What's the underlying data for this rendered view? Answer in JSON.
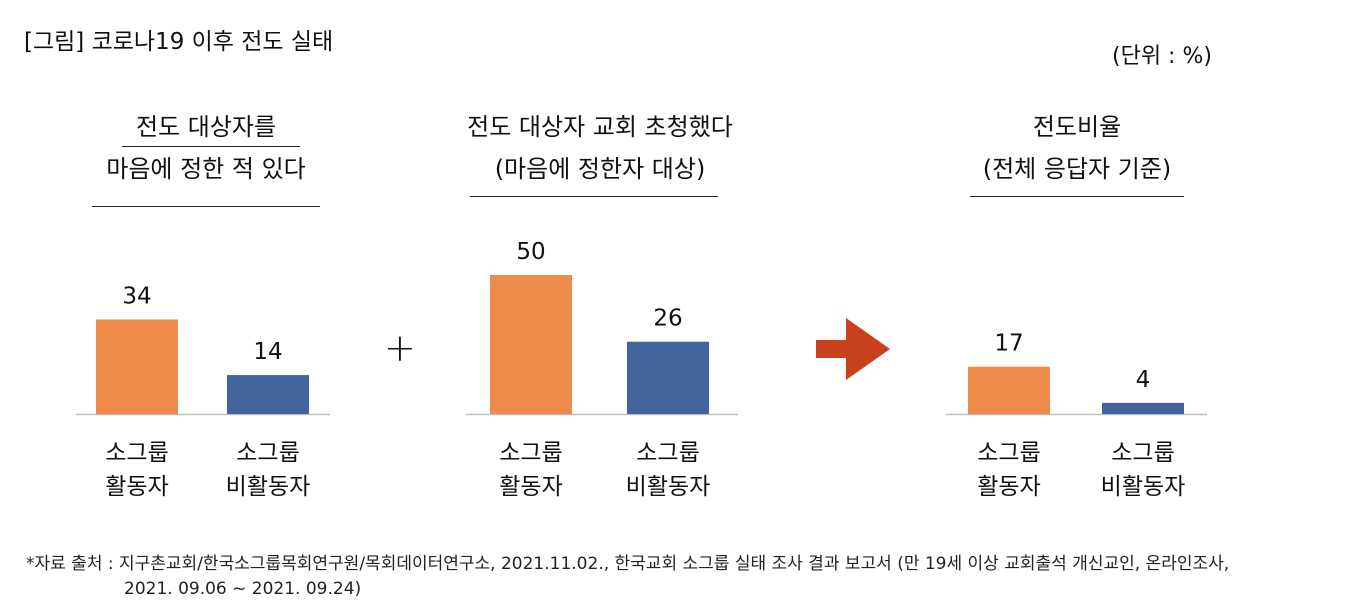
{
  "figure": {
    "title": "[그림] 코로나19 이후 전도 실태",
    "unit": "(단위 : %)"
  },
  "panels": [
    {
      "title_lines": [
        "전도 대상자를",
        "마음에 정한 적 있다"
      ]
    },
    {
      "title_lines": [
        "전도 대상자 교회 초청했다",
        "(마음에 정한자 대상)"
      ]
    },
    {
      "title_lines": [
        "전도비율",
        "(전체 응답자 기준)"
      ]
    }
  ],
  "operators": {
    "plus": "+",
    "arrow": "arrow-right-icon"
  },
  "colors": {
    "active": "#EE8A4A",
    "inactive": "#41649E",
    "arrow": "#C8421E",
    "axis": "#BFBFBF"
  },
  "chart_data": [
    {
      "type": "bar",
      "title": "전도 대상자를 마음에 정한 적 있다",
      "categories": [
        [
          "소그룹",
          "활동자"
        ],
        [
          "소그룹",
          "비활동자"
        ]
      ],
      "values": [
        34,
        14
      ],
      "ylim": [
        0,
        60
      ]
    },
    {
      "type": "bar",
      "title": "전도 대상자 교회 초청했다 (마음에 정한자 대상)",
      "categories": [
        [
          "소그룹",
          "활동자"
        ],
        [
          "소그룹",
          "비활동자"
        ]
      ],
      "values": [
        50,
        26
      ],
      "ylim": [
        0,
        60
      ]
    },
    {
      "type": "bar",
      "title": "전도비율 (전체 응답자 기준)",
      "categories": [
        [
          "소그룹",
          "활동자"
        ],
        [
          "소그룹",
          "비활동자"
        ]
      ],
      "values": [
        17,
        4
      ],
      "ylim": [
        0,
        60
      ]
    }
  ],
  "source": {
    "line1": "*자료 출처 : 지구촌교회/한국소그룹목회연구원/목회데이터연구소, 2021.11.02., 한국교회 소그룹 실태 조사 결과 보고서 (만 19세 이상 교회출석 개신교인, 온라인조사,",
    "line2": "2021. 09.06 ~ 2021. 09.24)"
  }
}
